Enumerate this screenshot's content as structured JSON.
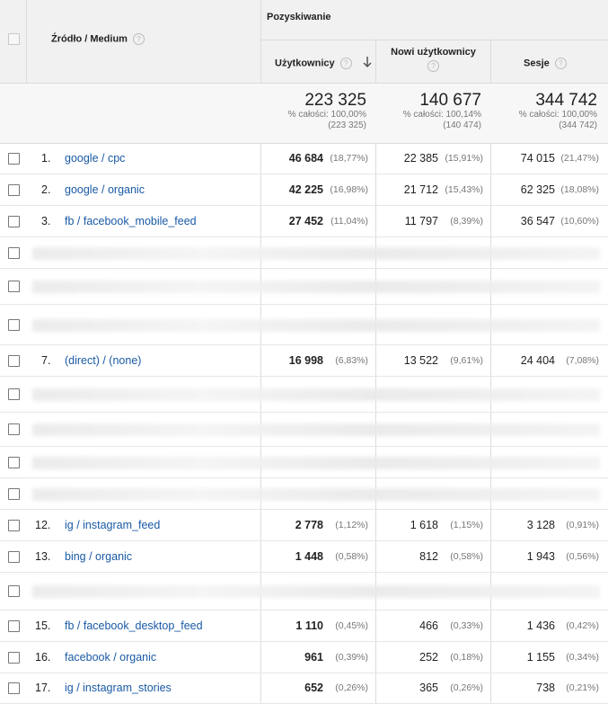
{
  "header": {
    "dimension_label": "Źródło / Medium",
    "group_label": "Pozyskiwanie",
    "col_users": "Użytkownicy",
    "col_new_users": "Nowi użytkownicy",
    "col_sessions": "Sesje",
    "sort_icon": "arrow-down-icon",
    "help_icon": "question-icon"
  },
  "totals": {
    "users": "223 325",
    "users_pct": "% całości: 100,00%",
    "users_abs": "(223 325)",
    "new_users": "140 677",
    "new_users_pct": "% całości: 100,14%",
    "new_users_abs": "(140 474)",
    "sessions": "344 742",
    "sessions_pct": "% całości: 100,00%",
    "sessions_abs": "(344 742)"
  },
  "rows": [
    {
      "num": "1.",
      "source": "google / cpc",
      "users": "46 684",
      "users_pct": "(18,77%)",
      "new": "22 385",
      "new_pct": "(15,91%)",
      "sessions": "74 015",
      "sessions_pct": "(21,47%)"
    },
    {
      "num": "2.",
      "source": "google / organic",
      "users": "42 225",
      "users_pct": "(16,98%)",
      "new": "21 712",
      "new_pct": "(15,43%)",
      "sessions": "62 325",
      "sessions_pct": "(18,08%)"
    },
    {
      "num": "3.",
      "source": "fb / facebook_mobile_feed",
      "users": "27 452",
      "users_pct": "(11,04%)",
      "new": "11 797",
      "new_pct": "(8,39%)",
      "sessions": "36 547",
      "sessions_pct": "(10,60%)"
    },
    {
      "num": "7.",
      "source": "(direct) / (none)",
      "users": "16 998",
      "users_pct": "(6,83%)",
      "new": "13 522",
      "new_pct": "(9,61%)",
      "sessions": "24 404",
      "sessions_pct": "(7,08%)"
    },
    {
      "num": "12.",
      "source": "ig / instagram_feed",
      "users": "2 778",
      "users_pct": "(1,12%)",
      "new": "1 618",
      "new_pct": "(1,15%)",
      "sessions": "3 128",
      "sessions_pct": "(0,91%)"
    },
    {
      "num": "13.",
      "source": "bing / organic",
      "users": "1 448",
      "users_pct": "(0,58%)",
      "new": "812",
      "new_pct": "(0,58%)",
      "sessions": "1 943",
      "sessions_pct": "(0,56%)"
    },
    {
      "num": "15.",
      "source": "fb / facebook_desktop_feed",
      "users": "1 110",
      "users_pct": "(0,45%)",
      "new": "466",
      "new_pct": "(0,33%)",
      "sessions": "1 436",
      "sessions_pct": "(0,42%)"
    },
    {
      "num": "16.",
      "source": "facebook / organic",
      "users": "961",
      "users_pct": "(0,39%)",
      "new": "252",
      "new_pct": "(0,18%)",
      "sessions": "1 155",
      "sessions_pct": "(0,34%)"
    },
    {
      "num": "17.",
      "source": "ig / instagram_stories",
      "users": "652",
      "users_pct": "(0,26%)",
      "new": "365",
      "new_pct": "(0,26%)",
      "sessions": "738",
      "sessions_pct": "(0,21%)"
    }
  ]
}
